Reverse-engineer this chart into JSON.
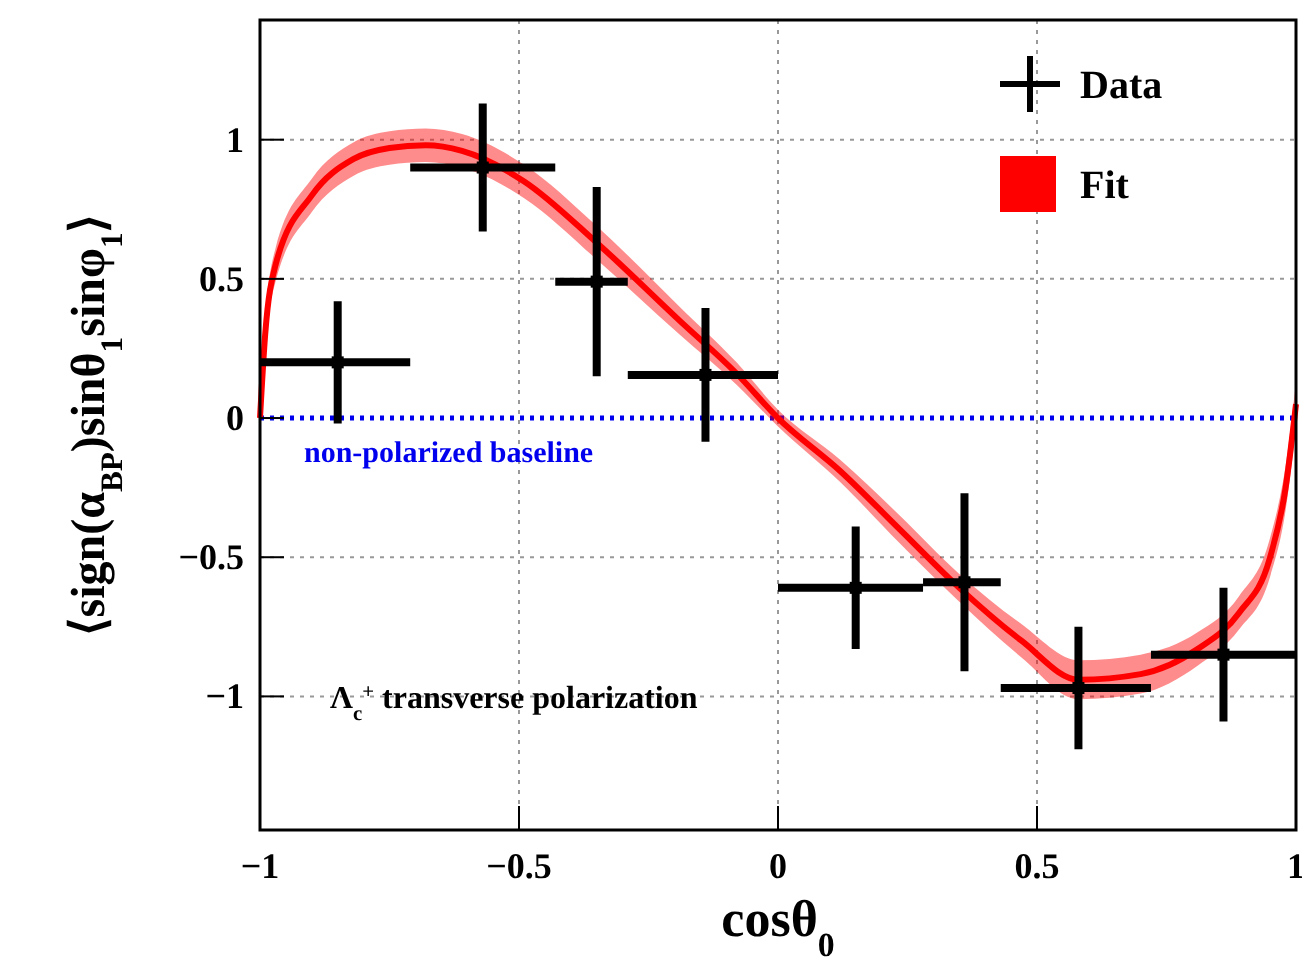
{
  "chart_data": {
    "type": "scatter",
    "xlabel": "cosθ$_{0}$",
    "ylabel": "⟨sign(α$_{BP}$)sinθ$_{1}$sinφ$_{1}$⟩",
    "xlim": [
      -1,
      1
    ],
    "ylim": [
      -1.48,
      1.43
    ],
    "xticks": [
      -1,
      -0.5,
      0,
      0.5,
      1
    ],
    "yticks": [
      -1,
      -0.5,
      0,
      0.5,
      1
    ],
    "grid": true,
    "legend": "top right",
    "series": [
      {
        "name": "Fit",
        "type": "line",
        "color": "#ff0000",
        "x": [
          -1,
          -0.99,
          -0.97,
          -0.9,
          -0.82,
          -0.75,
          -0.68,
          -0.61,
          -0.49,
          -0.35,
          -0.19,
          -0.08,
          0,
          0.12,
          0.235,
          0.35,
          0.47,
          0.58,
          0.7,
          0.81,
          0.89,
          0.95,
          0.98,
          1
        ],
        "values": [
          0,
          0.3,
          0.55,
          0.8,
          0.93,
          0.97,
          0.98,
          0.96,
          0.85,
          0.63,
          0.35,
          0.16,
          0,
          -0.19,
          -0.4,
          -0.61,
          -0.8,
          -0.94,
          -0.92,
          -0.83,
          -0.7,
          -0.5,
          -0.25,
          0.05
        ],
        "lower": [
          -0.06,
          0.24,
          0.49,
          0.74,
          0.87,
          0.91,
          0.92,
          0.9,
          0.79,
          0.57,
          0.3,
          0.12,
          -0.03,
          -0.23,
          -0.45,
          -0.66,
          -0.86,
          -1.01,
          -0.99,
          -0.89,
          -0.76,
          -0.57,
          -0.33,
          -0.03
        ],
        "upper": [
          0.06,
          0.36,
          0.61,
          0.86,
          0.99,
          1.03,
          1.04,
          1.02,
          0.91,
          0.69,
          0.4,
          0.2,
          0.03,
          -0.15,
          -0.35,
          -0.56,
          -0.74,
          -0.87,
          -0.85,
          -0.77,
          -0.64,
          -0.43,
          -0.17,
          0.13
        ]
      },
      {
        "name": "Data",
        "color": "#000000",
        "x": [
          -0.85,
          -0.57,
          -0.35,
          -0.14,
          0.15,
          0.36,
          0.58,
          0.86
        ],
        "values": [
          0.2,
          0.9,
          0.49,
          0.155,
          -0.61,
          -0.59,
          -0.97,
          -0.85
        ],
        "errors": [
          0.22,
          0.23,
          0.34,
          0.24,
          0.22,
          0.32,
          0.22,
          0.24
        ],
        "xerrors": [
          [
            -1,
            -0.71
          ],
          [
            -0.71,
            -0.43
          ],
          [
            -0.43,
            -0.29
          ],
          [
            -0.29,
            0
          ],
          [
            0,
            0.28
          ],
          [
            0.28,
            0.43
          ],
          [
            0.43,
            0.72
          ],
          [
            0.72,
            1
          ]
        ]
      }
    ],
    "ref_lines": [
      {
        "axis": "y",
        "value": 0,
        "label": "non-polarized baseline",
        "color": "#0000ee",
        "line_style": "dotted"
      }
    ],
    "annotations": [
      "Λ$_{c}$$^{+}$ transverse polarization"
    ]
  }
}
